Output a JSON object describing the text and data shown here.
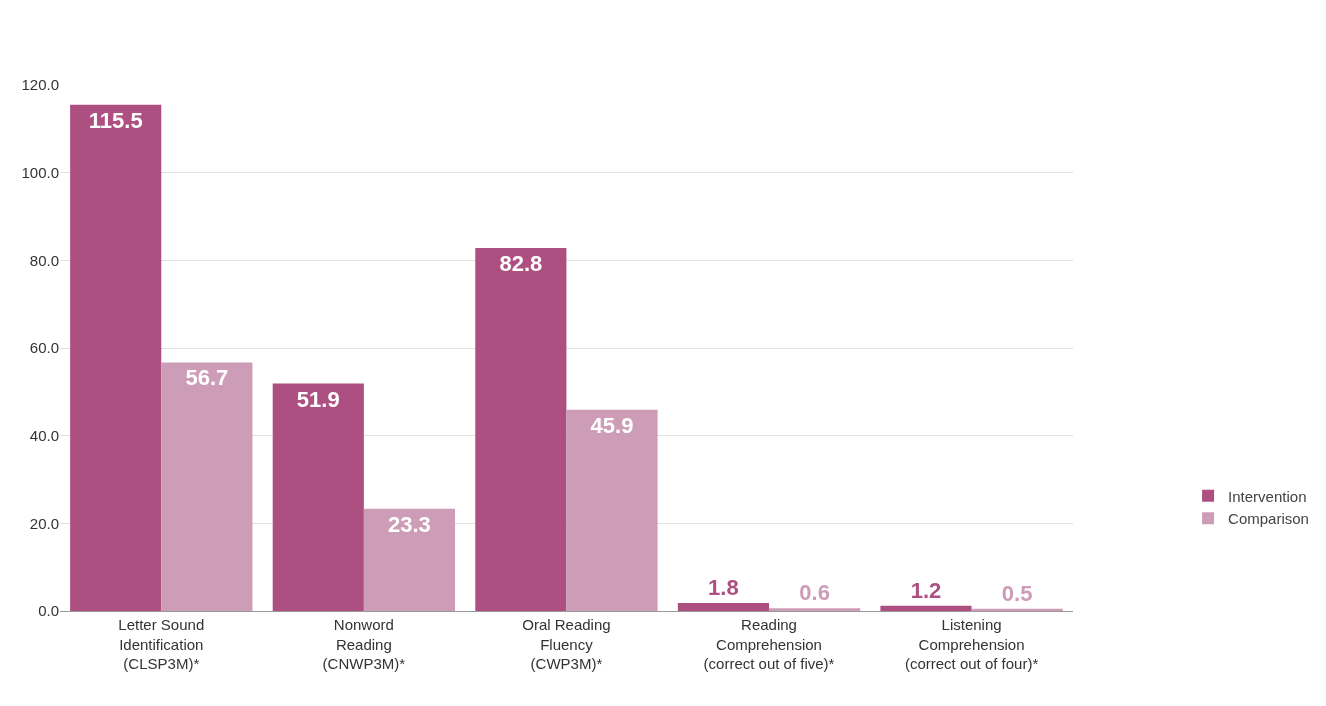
{
  "chart_data": {
    "type": "bar",
    "categories": [
      "Letter Sound\nIdentification\n(CLSP3M)*",
      "Nonword\nReading\n(CNWP3M)*",
      "Oral Reading\nFluency\n(CWP3M)*",
      "Reading\nComprehension\n(correct out of five)*",
      "Listening\nComprehension\n(correct out of four)*"
    ],
    "series": [
      {
        "name": "Intervention",
        "color": "#ad4f80",
        "values": [
          115.5,
          51.9,
          82.8,
          1.8,
          1.2
        ]
      },
      {
        "name": "Comparison",
        "color": "#cd9cb6",
        "values": [
          56.7,
          23.3,
          45.9,
          0.6,
          0.5
        ]
      }
    ],
    "ylim": [
      0,
      120
    ],
    "yticks": [
      {
        "value": 0,
        "label": "0.0"
      },
      {
        "value": 20,
        "label": "20.0"
      },
      {
        "value": 40,
        "label": "40.0"
      },
      {
        "value": 60,
        "label": "60.0"
      },
      {
        "value": 80,
        "label": "80.0"
      },
      {
        "value": 100,
        "label": "100.0"
      },
      {
        "value": 120,
        "label": "120.0"
      }
    ],
    "grid": "y",
    "legend": "right",
    "data_labels": true
  }
}
